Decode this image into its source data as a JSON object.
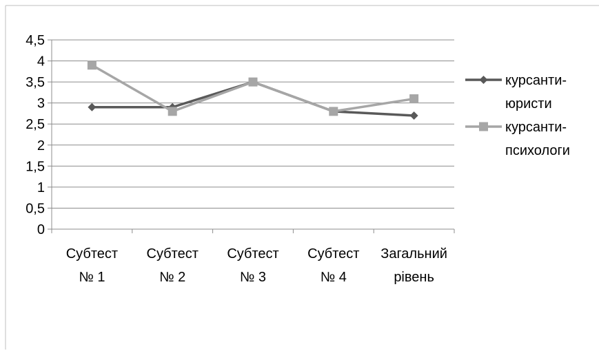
{
  "chart_data": {
    "type": "line",
    "categories": [
      [
        "Субтест",
        "№ 1"
      ],
      [
        "Субтест",
        "№ 2"
      ],
      [
        "Субтест",
        "№ 3"
      ],
      [
        "Субтест",
        "№ 4"
      ],
      [
        "Загальний",
        "рівень"
      ]
    ],
    "y_ticks": [
      "0",
      "0,5",
      "1",
      "1,5",
      "2",
      "2,5",
      "3",
      "3,5",
      "4",
      "4,5"
    ],
    "ylim": [
      0,
      4.5
    ],
    "grid": true,
    "legend_position": "right",
    "series": [
      {
        "name": [
          "курсанти-",
          "юристи"
        ],
        "values": [
          2.9,
          2.9,
          3.5,
          2.8,
          2.7
        ],
        "color": "#595959",
        "marker": "diamond"
      },
      {
        "name": [
          "курсанти-",
          "психологи"
        ],
        "values": [
          3.9,
          2.8,
          3.5,
          2.8,
          3.1
        ],
        "color": "#a6a6a6",
        "marker": "square"
      }
    ]
  }
}
